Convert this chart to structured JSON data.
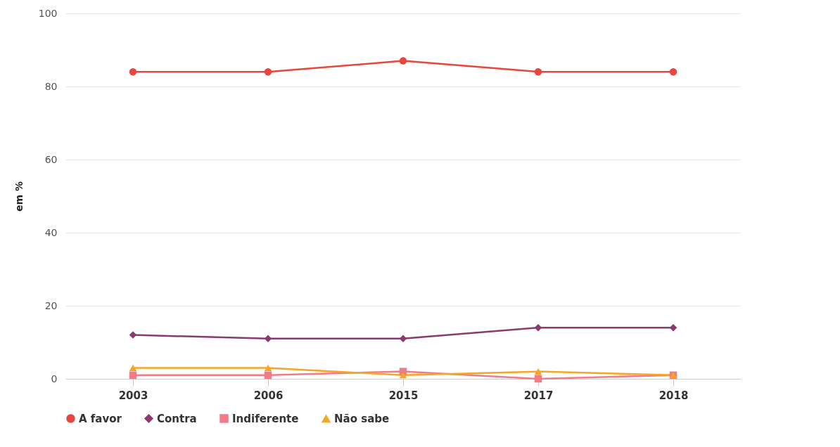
{
  "chart_data": {
    "type": "line",
    "ylabel": "em %",
    "categories": [
      "2003",
      "2006",
      "2015",
      "2017",
      "2018"
    ],
    "series": [
      {
        "name": "A favor",
        "color": "#e8453c",
        "marker": "circle",
        "values": [
          84,
          84,
          87,
          84,
          84
        ]
      },
      {
        "name": "Contra",
        "color": "#8b3a6e",
        "marker": "diamond",
        "values": [
          12,
          11,
          11,
          14,
          14
        ]
      },
      {
        "name": "Indiferente",
        "color": "#f27b86",
        "marker": "square",
        "values": [
          1,
          1,
          2,
          0,
          1
        ]
      },
      {
        "name": "Não sabe",
        "color": "#f5a623",
        "marker": "triangle",
        "values": [
          3,
          3,
          1,
          2,
          1
        ]
      }
    ],
    "ylim": [
      0,
      100
    ],
    "yticks": [
      0,
      20,
      40,
      60,
      80,
      100
    ],
    "grid": "y",
    "legend": "bottom"
  }
}
